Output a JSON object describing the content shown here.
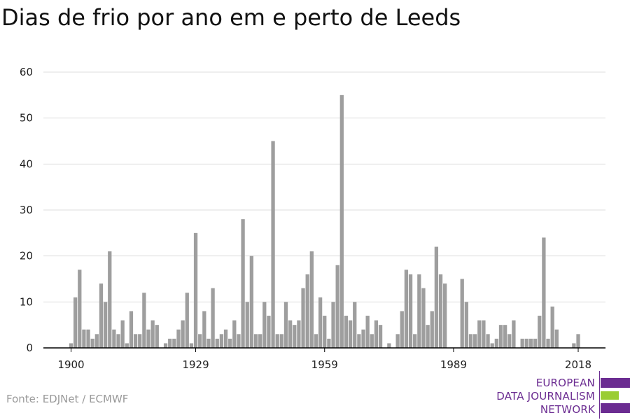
{
  "title": "Dias de frio por ano em e perto de Leeds",
  "source": "Fonte: EDJNet / ECMWF",
  "logo": {
    "lines": [
      "EUROPEAN",
      "DATA JOURNALISM",
      "NETWORK"
    ],
    "colors": {
      "purple": "#6b2c91",
      "green": "#9acd32"
    }
  },
  "colors": {
    "bar": "#9e9e9e",
    "grid": "#dddddd",
    "axis": "#000000",
    "tick_text": "#222222"
  },
  "chart_data": {
    "type": "bar",
    "x_start": 1900,
    "x_end": 2018,
    "xticks": [
      1900,
      1929,
      1959,
      1989,
      2018
    ],
    "yticks": [
      0,
      10,
      20,
      30,
      40,
      50,
      60
    ],
    "ylim": [
      0,
      60
    ],
    "grid": true,
    "values": [
      1,
      11,
      17,
      4,
      4,
      2,
      3,
      14,
      10,
      21,
      4,
      3,
      6,
      1,
      8,
      3,
      3,
      12,
      4,
      6,
      5,
      0,
      1,
      2,
      2,
      4,
      6,
      12,
      1,
      25,
      3,
      8,
      2,
      13,
      2,
      3,
      4,
      2,
      6,
      3,
      28,
      10,
      20,
      3,
      3,
      10,
      7,
      45,
      3,
      3,
      10,
      6,
      5,
      6,
      13,
      16,
      21,
      3,
      11,
      7,
      2,
      10,
      18,
      55,
      7,
      6,
      10,
      3,
      4,
      7,
      3,
      6,
      5,
      0,
      1,
      0,
      3,
      8,
      17,
      16,
      3,
      16,
      13,
      5,
      8,
      22,
      16,
      14,
      0,
      0,
      0,
      15,
      10,
      3,
      3,
      6,
      6,
      3,
      1,
      2,
      5,
      5,
      3,
      6,
      0,
      2,
      2,
      2,
      2,
      7,
      24,
      2,
      9,
      4,
      0,
      0,
      0,
      1,
      3
    ]
  }
}
